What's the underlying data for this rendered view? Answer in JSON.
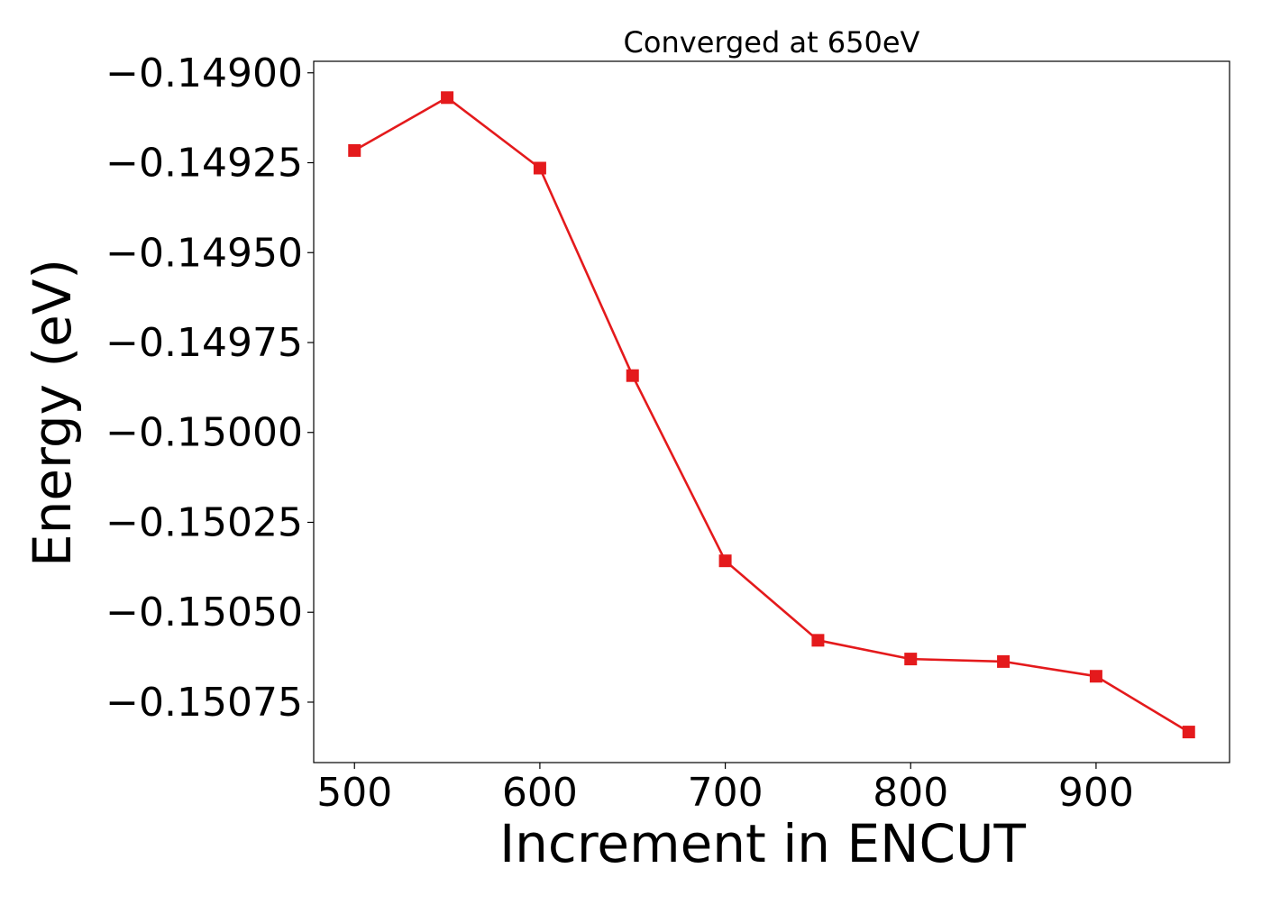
{
  "chart_data": {
    "type": "line",
    "title": "Converged at 650eV",
    "xlabel": "Increment in ENCUT",
    "ylabel": "Energy (eV)",
    "x": [
      500,
      550,
      600,
      650,
      700,
      750,
      800,
      850,
      900,
      950
    ],
    "series": [
      {
        "values": [
          -0.149216,
          -0.149069,
          -0.149265,
          -0.149842,
          -0.150357,
          -0.150578,
          -0.15063,
          -0.150637,
          -0.150678,
          -0.150833
        ],
        "color": "#e41a1c",
        "marker": "square"
      }
    ],
    "xlim": [
      478,
      972
    ],
    "ylim": [
      -0.150918,
      -0.148968
    ],
    "xticks": [
      500,
      600,
      700,
      800,
      900
    ],
    "xtick_labels": [
      "500",
      "600",
      "700",
      "800",
      "900"
    ],
    "yticks": [
      -0.149,
      -0.14925,
      -0.1495,
      -0.14975,
      -0.15,
      -0.15025,
      -0.1505,
      -0.15075
    ],
    "ytick_labels": [
      "−0.14900",
      "−0.14925",
      "−0.14950",
      "−0.14975",
      "−0.15000",
      "−0.15025",
      "−0.15050",
      "−0.15075"
    ],
    "grid": false,
    "legend": "none"
  }
}
